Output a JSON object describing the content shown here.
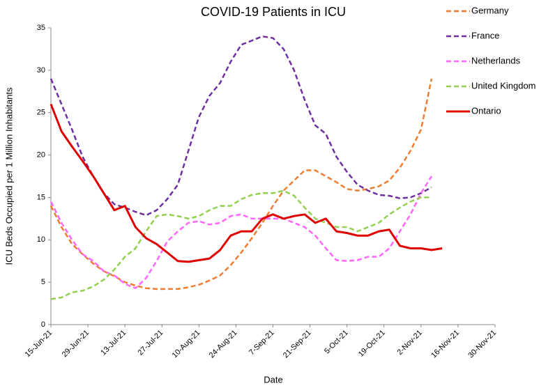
{
  "chart_data": {
    "type": "line",
    "title": "COVID-19 Patients in ICU",
    "x_label": "Date",
    "y_label": "ICU Beds Occupied per 1 Million Inhabitants",
    "x": [
      "2021-06-15",
      "2021-06-19",
      "2021-06-23",
      "2021-06-27",
      "2021-07-01",
      "2021-07-05",
      "2021-07-09",
      "2021-07-13",
      "2021-07-17",
      "2021-07-21",
      "2021-07-25",
      "2021-07-29",
      "2021-08-02",
      "2021-08-06",
      "2021-08-10",
      "2021-08-14",
      "2021-08-18",
      "2021-08-22",
      "2021-08-26",
      "2021-08-30",
      "2021-09-03",
      "2021-09-07",
      "2021-09-11",
      "2021-09-15",
      "2021-09-19",
      "2021-09-23",
      "2021-09-27",
      "2021-10-01",
      "2021-10-05",
      "2021-10-09",
      "2021-10-13",
      "2021-10-17",
      "2021-10-21",
      "2021-10-25",
      "2021-10-29",
      "2021-11-02",
      "2021-11-06",
      "2021-11-10"
    ],
    "series": [
      {
        "name": "Germany",
        "color": "#ed7d31",
        "dash": true,
        "values": [
          14,
          11.5,
          9.5,
          8.3,
          7.2,
          6.3,
          5.7,
          5.0,
          4.6,
          4.3,
          4.2,
          4.2,
          4.2,
          4.4,
          4.7,
          5.2,
          5.8,
          7.0,
          8.5,
          10.2,
          12.0,
          14.0,
          15.8,
          17.0,
          18.2,
          18.2,
          17.5,
          16.8,
          16.0,
          15.8,
          16.0,
          16.3,
          17.0,
          18.5,
          20.5,
          23.0,
          29.0,
          null
        ]
      },
      {
        "name": "France",
        "color": "#7030a0",
        "dash": true,
        "values": [
          29,
          26,
          23,
          19.8,
          17.5,
          15.5,
          14.2,
          13.8,
          13.3,
          12.9,
          13.5,
          14.8,
          16.5,
          20.5,
          24.5,
          27.0,
          28.5,
          31.0,
          33.0,
          33.5,
          34.0,
          33.8,
          32.5,
          30.0,
          26.5,
          23.5,
          22.5,
          19.8,
          18.0,
          16.5,
          15.8,
          15.3,
          15.2,
          14.9,
          15.0,
          15.5,
          16.2,
          null
        ]
      },
      {
        "name": "Netherlands",
        "color": "#ff66ff",
        "dash": true,
        "values": [
          14.5,
          12,
          10,
          8.3,
          7.5,
          6.3,
          5.8,
          4.8,
          4.3,
          5.5,
          7.5,
          9.8,
          11.0,
          12.0,
          12.2,
          11.8,
          12.0,
          12.8,
          13.0,
          12.5,
          12.5,
          12.5,
          12.5,
          12.0,
          11.5,
          10.5,
          9.0,
          7.6,
          7.5,
          7.6,
          8.0,
          8.0,
          9.0,
          11.0,
          13.0,
          15.5,
          17.5,
          null
        ]
      },
      {
        "name": "United Kingdom",
        "color": "#92d050",
        "dash": true,
        "values": [
          3.0,
          3.2,
          3.8,
          4.0,
          4.5,
          5.3,
          6.5,
          8.0,
          9.0,
          11.0,
          12.8,
          13.0,
          12.8,
          12.5,
          12.8,
          13.5,
          14.0,
          14.0,
          14.8,
          15.3,
          15.5,
          15.5,
          15.8,
          15.2,
          13.8,
          12.5,
          12.0,
          11.5,
          11.5,
          11.0,
          11.5,
          12.0,
          13.0,
          13.8,
          14.5,
          15.0,
          15.0,
          null
        ]
      },
      {
        "name": "Ontario",
        "color": "#e00000",
        "dash": false,
        "values": [
          26,
          22.8,
          21.0,
          19.3,
          17.5,
          15.5,
          13.5,
          14.0,
          11.5,
          10.2,
          9.5,
          8.5,
          7.5,
          7.4,
          7.6,
          7.8,
          8.8,
          10.5,
          11.0,
          11.0,
          12.5,
          13.0,
          12.5,
          12.8,
          13.0,
          12.0,
          12.5,
          11.0,
          10.8,
          10.5,
          10.5,
          11.0,
          11.2,
          9.3,
          9.0,
          9.0,
          8.8,
          9.0
        ]
      }
    ],
    "xlim": [
      "2021-06-15",
      "2021-11-30"
    ],
    "xticks": [
      {
        "value": "2021-06-15",
        "label": "15-Jun-21"
      },
      {
        "value": "2021-06-29",
        "label": "29-Jun-21"
      },
      {
        "value": "2021-07-13",
        "label": "13-Jul-21"
      },
      {
        "value": "2021-07-27",
        "label": "27-Jul-21"
      },
      {
        "value": "2021-08-10",
        "label": "10-Aug-21"
      },
      {
        "value": "2021-08-24",
        "label": "24-Aug-21"
      },
      {
        "value": "2021-09-07",
        "label": "7-Sep-21"
      },
      {
        "value": "2021-09-21",
        "label": "21-Sep-21"
      },
      {
        "value": "2021-10-05",
        "label": "5-Oct-21"
      },
      {
        "value": "2021-10-19",
        "label": "19-Oct-21"
      },
      {
        "value": "2021-11-02",
        "label": "2-Nov-21"
      },
      {
        "value": "2021-11-16",
        "label": "16-Nov-21"
      },
      {
        "value": "2021-11-30",
        "label": "30-Nov-21"
      }
    ],
    "ylim": [
      0,
      35
    ],
    "yticks": [
      0,
      5,
      10,
      15,
      20,
      25,
      30,
      35
    ],
    "grid": false
  }
}
